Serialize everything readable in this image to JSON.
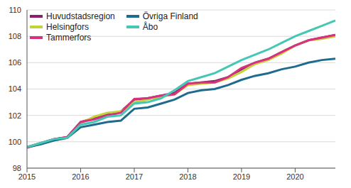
{
  "chart_data": {
    "type": "line",
    "x": [
      2015,
      2015.25,
      2015.5,
      2015.75,
      2016,
      2016.25,
      2016.5,
      2016.75,
      2017,
      2017.25,
      2017.5,
      2017.75,
      2018,
      2018.25,
      2018.5,
      2018.75,
      2019,
      2019.25,
      2019.5,
      2019.75,
      2020,
      2020.25,
      2020.5,
      2020.75
    ],
    "series": [
      {
        "name": "Huvudstadsregion",
        "color": "#8a1f6b",
        "values": [
          99.6,
          99.9,
          100.2,
          100.35,
          101.5,
          101.8,
          102.1,
          102.3,
          103.2,
          103.3,
          103.5,
          103.7,
          104.4,
          104.5,
          104.6,
          104.9,
          105.5,
          106.0,
          106.3,
          106.8,
          107.3,
          107.7,
          107.9,
          108.1
        ]
      },
      {
        "name": "Helsingfors",
        "color": "#c2d23a",
        "values": [
          99.6,
          99.9,
          100.1,
          100.3,
          101.4,
          101.9,
          102.2,
          102.3,
          103.0,
          103.2,
          103.4,
          103.6,
          104.3,
          104.4,
          104.5,
          104.8,
          105.3,
          105.9,
          106.2,
          106.7,
          107.3,
          107.7,
          107.8,
          108.0
        ]
      },
      {
        "name": "Tammerfors",
        "color": "#d8327e",
        "values": [
          99.55,
          99.85,
          100.2,
          100.35,
          101.5,
          101.7,
          102.0,
          102.2,
          103.25,
          103.3,
          103.5,
          103.6,
          104.4,
          104.5,
          104.5,
          104.9,
          105.6,
          106.0,
          106.3,
          106.8,
          107.3,
          107.7,
          107.9,
          108.1
        ]
      },
      {
        "name": "Övriga Finland",
        "color": "#1f6b8f",
        "values": [
          99.6,
          99.8,
          100.1,
          100.3,
          101.1,
          101.3,
          101.5,
          101.6,
          102.5,
          102.6,
          102.9,
          103.2,
          103.7,
          103.9,
          104.0,
          104.3,
          104.7,
          105.0,
          105.2,
          105.5,
          105.7,
          106.0,
          106.2,
          106.3
        ]
      },
      {
        "name": "Åbo",
        "color": "#45c7b6",
        "values": [
          99.6,
          99.9,
          100.2,
          100.3,
          101.3,
          101.5,
          101.9,
          102.0,
          102.9,
          103.0,
          103.3,
          103.9,
          104.6,
          104.9,
          105.2,
          105.7,
          106.2,
          106.6,
          107.0,
          107.5,
          108.0,
          108.4,
          108.8,
          109.2
        ]
      }
    ],
    "xlim": [
      2015,
      2020.75
    ],
    "xticks": [
      2015,
      2016,
      2017,
      2018,
      2019,
      2020
    ],
    "ylim": [
      98,
      110
    ],
    "yticks": [
      98,
      100,
      102,
      104,
      106,
      108,
      110
    ],
    "grid": true,
    "legend": "top-left"
  }
}
